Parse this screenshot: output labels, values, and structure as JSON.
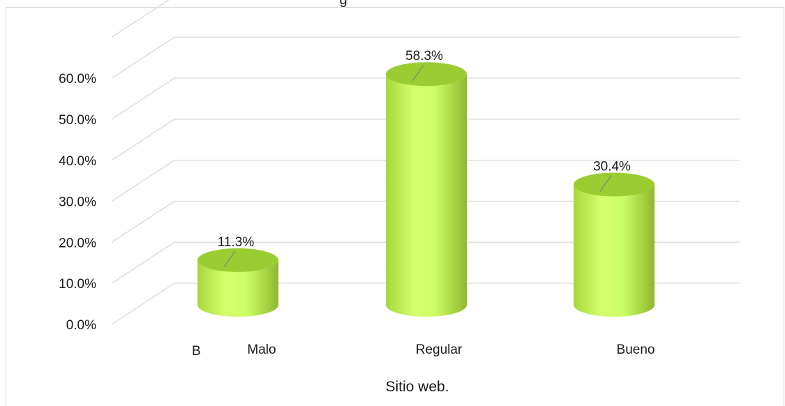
{
  "chart_data": {
    "type": "bar",
    "title": "g",
    "categories": [
      "Malo",
      "Regular",
      "Bueno"
    ],
    "series": [
      {
        "values": [
          11.3,
          58.3,
          30.4
        ]
      }
    ],
    "data_labels": [
      "11.3%",
      "58.3%",
      "30.4%"
    ],
    "xlabel": "Sitio web.",
    "extra_label": "B",
    "ylim": [
      0,
      60
    ],
    "yticks": [
      "0.0%",
      "10.0%",
      "20.0%",
      "30.0%",
      "40.0%",
      "50.0%",
      "60.0%"
    ],
    "grid": true,
    "bar_color": "#ccff66",
    "bar_shade_color": "#8fb82e",
    "bar_top_color": "#9acd32",
    "grid_color": "#d9d9d9"
  }
}
